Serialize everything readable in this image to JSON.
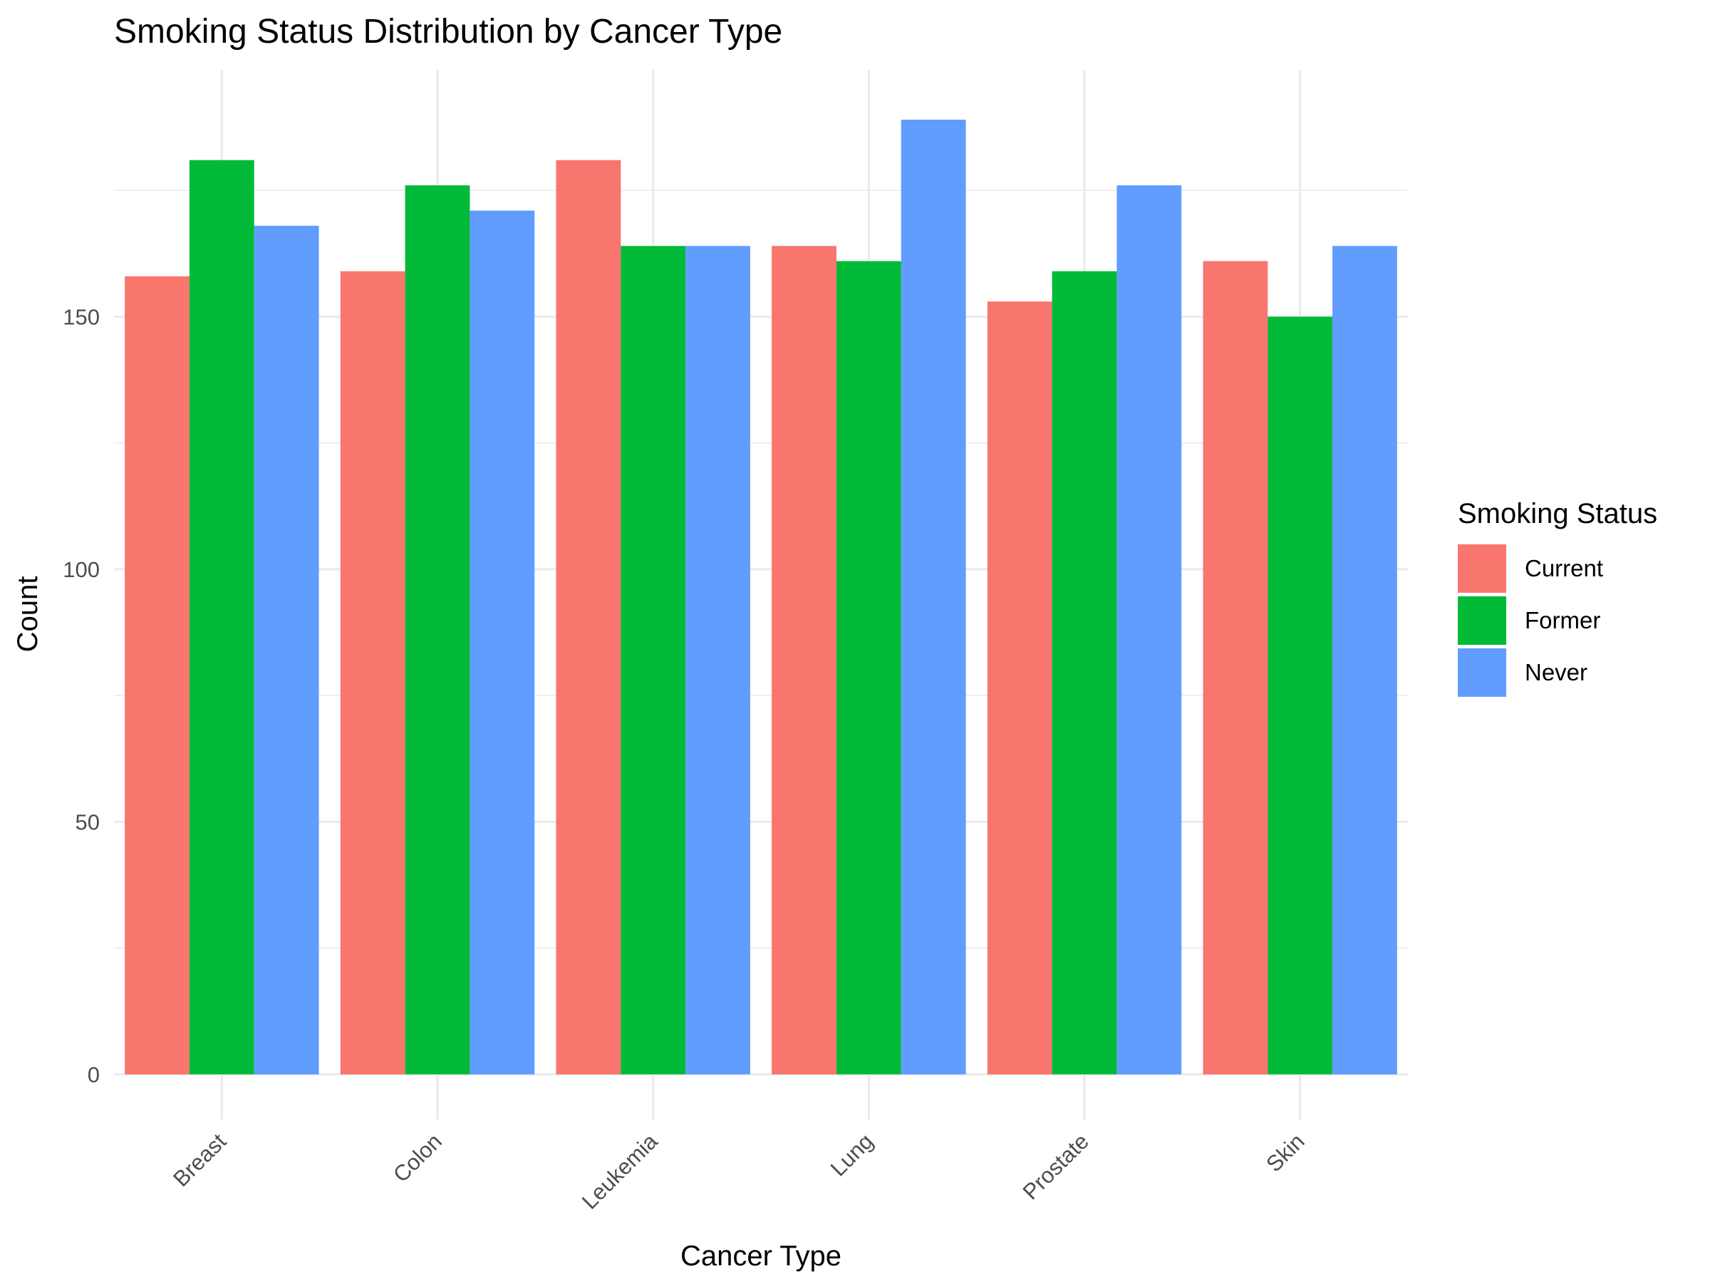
{
  "chart_data": {
    "type": "bar",
    "title": "Smoking Status Distribution by Cancer Type",
    "xlabel": "Cancer Type",
    "ylabel": "Count",
    "categories": [
      "Breast",
      "Colon",
      "Leukemia",
      "Lung",
      "Prostate",
      "Skin"
    ],
    "series": [
      {
        "name": "Current",
        "color": "#F8766D",
        "values": [
          158,
          159,
          181,
          164,
          153,
          161
        ]
      },
      {
        "name": "Former",
        "color": "#00BA38",
        "values": [
          181,
          176,
          164,
          161,
          159,
          150
        ]
      },
      {
        "name": "Never",
        "color": "#619CFF",
        "values": [
          168,
          171,
          164,
          189,
          176,
          164
        ]
      }
    ],
    "ylim": [
      0,
      199
    ],
    "yticks": [
      0,
      50,
      100,
      150
    ],
    "grid": true,
    "legend": {
      "title": "Smoking Status",
      "position": "right"
    }
  }
}
